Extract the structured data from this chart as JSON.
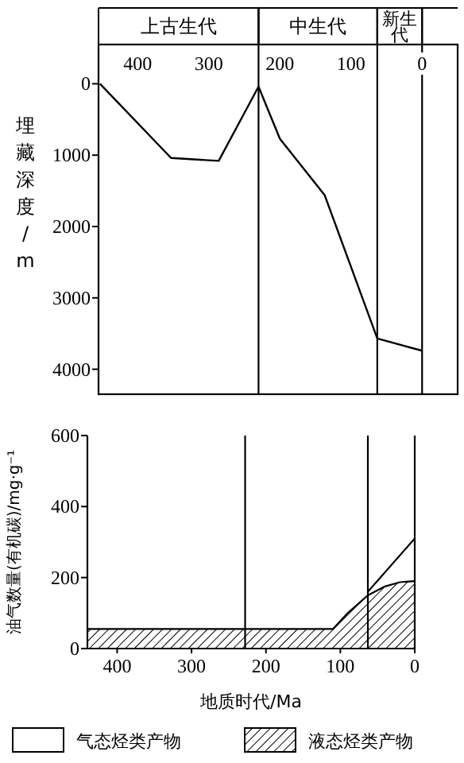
{
  "chart_data": [
    {
      "type": "line",
      "ylabel": "埋藏深度/m",
      "xlim": [
        455,
        -50
      ],
      "xticks": [
        400,
        300,
        200,
        100,
        0
      ],
      "ylim": [
        4350,
        -550
      ],
      "yticks": [
        0,
        1000,
        2000,
        3000,
        4000
      ],
      "grid": false,
      "legend": false,
      "series": [
        {
          "color": "#000000",
          "x": [
            453,
            353,
            286,
            230,
            200,
            137,
            63,
            0
          ],
          "values": [
            0,
            1040,
            1080,
            40,
            770,
            1560,
            3570,
            3740
          ]
        }
      ],
      "ref_lines": [
        {
          "axis": "x",
          "value": 230
        },
        {
          "axis": "x",
          "value": 63
        },
        {
          "axis": "x",
          "value": 0
        }
      ],
      "annotations": [
        "上古生代",
        "中生代",
        "新生代"
      ]
    },
    {
      "type": "area",
      "xlabel": "地质时代/Ma",
      "ylabel": "油气数量(有机碳)/mg·g⁻¹",
      "xlim": [
        440,
        0
      ],
      "xticks": [
        400,
        300,
        200,
        100,
        0
      ],
      "ylim": [
        0,
        600
      ],
      "yticks": [
        0,
        200,
        400,
        600
      ],
      "grid": false,
      "legend": "bottom",
      "series": [
        {
          "name": "气态烃类产物",
          "color": "#ffffff",
          "x": [
            63,
            0
          ],
          "values": [
            160,
            310
          ]
        },
        {
          "name": "液态烃类产物",
          "color": "#000000",
          "x": [
            440,
            110,
            90,
            63,
            40,
            20,
            0
          ],
          "values": [
            55,
            55,
            100,
            150,
            175,
            187,
            190
          ]
        }
      ],
      "ref_lines": [
        {
          "axis": "x",
          "value": 228
        },
        {
          "axis": "x",
          "value": 63
        },
        {
          "axis": "x",
          "value": 0
        }
      ]
    }
  ]
}
